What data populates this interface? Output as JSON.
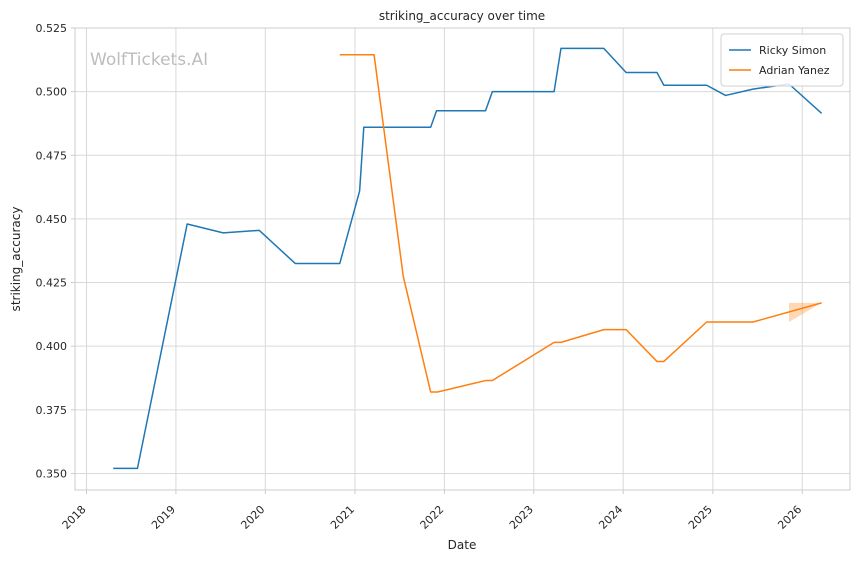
{
  "chart_data": {
    "type": "line",
    "title": "striking_accuracy over time",
    "xlabel": "Date",
    "ylabel": "striking_accuracy",
    "watermark": "WolfTickets.AI",
    "xlim": [
      "2017-11-15",
      "2026-07-15"
    ],
    "ylim": [
      0.3435,
      0.525
    ],
    "x_ticks": [
      {
        "date": "2018-01-01",
        "label": "2018"
      },
      {
        "date": "2019-01-01",
        "label": "2019"
      },
      {
        "date": "2020-01-01",
        "label": "2020"
      },
      {
        "date": "2021-01-01",
        "label": "2021"
      },
      {
        "date": "2022-01-01",
        "label": "2022"
      },
      {
        "date": "2023-01-01",
        "label": "2023"
      },
      {
        "date": "2024-01-01",
        "label": "2024"
      },
      {
        "date": "2025-01-01",
        "label": "2025"
      },
      {
        "date": "2026-01-01",
        "label": "2026"
      }
    ],
    "y_ticks": [
      {
        "value": 0.35,
        "label": "0.350"
      },
      {
        "value": 0.375,
        "label": "0.375"
      },
      {
        "value": 0.4,
        "label": "0.400"
      },
      {
        "value": 0.425,
        "label": "0.425"
      },
      {
        "value": 0.45,
        "label": "0.450"
      },
      {
        "value": 0.475,
        "label": "0.475"
      },
      {
        "value": 0.5,
        "label": "0.500"
      },
      {
        "value": 0.525,
        "label": "0.525"
      }
    ],
    "grid": true,
    "legend_position": "top-right",
    "series": [
      {
        "name": "Ricky Simon",
        "color": "#1f77b4",
        "points": [
          {
            "x": "2018-04-20",
            "y": 0.352
          },
          {
            "x": "2018-07-28",
            "y": 0.352
          },
          {
            "x": "2019-02-16",
            "y": 0.448
          },
          {
            "x": "2019-07-13",
            "y": 0.4445
          },
          {
            "x": "2019-12-07",
            "y": 0.4455
          },
          {
            "x": "2020-05-02",
            "y": 0.4325
          },
          {
            "x": "2020-10-31",
            "y": 0.4325
          },
          {
            "x": "2021-01-20",
            "y": 0.461
          },
          {
            "x": "2021-02-06",
            "y": 0.486
          },
          {
            "x": "2021-11-06",
            "y": 0.486
          },
          {
            "x": "2021-11-30",
            "y": 0.4925
          },
          {
            "x": "2022-06-18",
            "y": 0.4925
          },
          {
            "x": "2022-07-16",
            "y": 0.5
          },
          {
            "x": "2023-03-25",
            "y": 0.5
          },
          {
            "x": "2023-04-22",
            "y": 0.517
          },
          {
            "x": "2023-10-14",
            "y": 0.517
          },
          {
            "x": "2024-01-13",
            "y": 0.5075
          },
          {
            "x": "2024-05-18",
            "y": 0.5075
          },
          {
            "x": "2024-06-15",
            "y": 0.5025
          },
          {
            "x": "2024-12-07",
            "y": 0.5025
          },
          {
            "x": "2025-02-22",
            "y": 0.4985
          },
          {
            "x": "2025-06-14",
            "y": 0.501
          },
          {
            "x": "2025-11-08",
            "y": 0.503
          },
          {
            "x": "2026-03-21",
            "y": 0.4915
          }
        ]
      },
      {
        "name": "Adrian Yanez",
        "color": "#ff7f0e",
        "points": [
          {
            "x": "2020-10-31",
            "y": 0.5145
          },
          {
            "x": "2021-03-20",
            "y": 0.5145
          },
          {
            "x": "2021-07-17",
            "y": 0.4275
          },
          {
            "x": "2021-11-06",
            "y": 0.382
          },
          {
            "x": "2021-12-04",
            "y": 0.382
          },
          {
            "x": "2022-06-18",
            "y": 0.3865
          },
          {
            "x": "2022-07-16",
            "y": 0.3865
          },
          {
            "x": "2023-03-25",
            "y": 0.4015
          },
          {
            "x": "2023-04-22",
            "y": 0.4015
          },
          {
            "x": "2023-10-14",
            "y": 0.4065
          },
          {
            "x": "2024-01-13",
            "y": 0.4065
          },
          {
            "x": "2024-05-18",
            "y": 0.394
          },
          {
            "x": "2024-06-15",
            "y": 0.394
          },
          {
            "x": "2024-12-07",
            "y": 0.4095
          },
          {
            "x": "2025-06-14",
            "y": 0.4095
          },
          {
            "x": "2026-03-21",
            "y": 0.417
          }
        ],
        "band": [
          {
            "x": "2025-11-08",
            "low": 0.4095,
            "high": 0.417
          },
          {
            "x": "2026-03-21",
            "low": 0.417,
            "high": 0.417
          }
        ]
      }
    ]
  }
}
